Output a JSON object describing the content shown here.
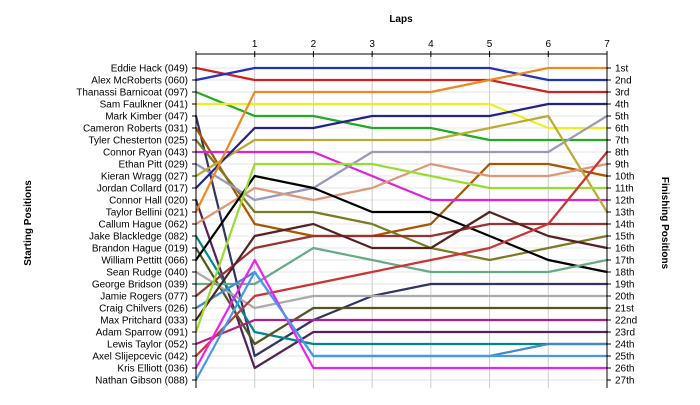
{
  "chart_data": {
    "type": "line",
    "title": "",
    "xlabel": "Laps",
    "ylabel_left": "Starting Positions",
    "ylabel_right": "Finishing Positions",
    "x": [
      0,
      1,
      2,
      3,
      4,
      5,
      6,
      7
    ],
    "x_tick_labels": [
      "1",
      "2",
      "3",
      "4",
      "5",
      "6",
      "7"
    ],
    "y_reversed": true,
    "ylim": [
      1,
      27
    ],
    "grid": true,
    "start_labels": [
      "Eddie Hack (049)",
      "Alex McRoberts (060)",
      "Thanassi Barnicoat (097)",
      "Sam Faulkner (041)",
      "Mark Kimber (047)",
      "Cameron Roberts (031)",
      "Tyler Chesterton (025)",
      "Connor Ryan (043)",
      "Ethan Pitt (029)",
      "Kieran Wragg (027)",
      "Jordan Collard (017)",
      "Connor Hall (020)",
      "Taylor Bellini (021)",
      "Callum Hague (062)",
      "Jake Blackledge (082)",
      "Brandon Hague (019)",
      "William Pettitt (066)",
      "Sean Rudge (040)",
      "George Bridson (039)",
      "Jamie Rogers (077)",
      "Craig Chilvers (026)",
      "Max Pritchard (033)",
      "Adam Sparrow (091)",
      "Lewis Taylor (052)",
      "Axel Slijepcevic (042)",
      "Kris Elliott (036)",
      "Nathan Gibson (088)"
    ],
    "finish_labels": [
      "1st",
      "2nd",
      "3rd",
      "4th",
      "5th",
      "6th",
      "7th",
      "8th",
      "9th",
      "10th",
      "11th",
      "12th",
      "13th",
      "14th",
      "15th",
      "16th",
      "17th",
      "18th",
      "19th",
      "20th",
      "21st",
      "22nd",
      "23rd",
      "24th",
      "25th",
      "26th",
      "27th"
    ],
    "series": [
      {
        "name": "Eddie Hack (049)",
        "color": "#cc2222",
        "values": [
          1,
          2,
          2,
          2,
          2,
          2,
          3,
          3
        ]
      },
      {
        "name": "Alex McRoberts (060)",
        "color": "#2233bb",
        "values": [
          2,
          1,
          1,
          1,
          1,
          1,
          2,
          2
        ]
      },
      {
        "name": "Thanassi Barnicoat (097)",
        "color": "#22aa22",
        "values": [
          3,
          5,
          5,
          6,
          6,
          7,
          7,
          7
        ]
      },
      {
        "name": "Sam Faulkner (041)",
        "color": "#eeee22",
        "values": [
          4,
          4,
          4,
          4,
          4,
          4,
          6,
          6
        ]
      },
      {
        "name": "Mark Kimber (047)",
        "color": "#333366",
        "values": [
          5,
          25,
          22,
          20,
          19,
          19,
          19,
          19
        ]
      },
      {
        "name": "Cameron Roberts (031)",
        "color": "#aa5500",
        "values": [
          6,
          14,
          15,
          15,
          14,
          9,
          9,
          10
        ]
      },
      {
        "name": "Tyler Chesterton (025)",
        "color": "#7b7b22",
        "values": [
          7,
          13,
          13,
          14,
          16,
          17,
          16,
          15
        ]
      },
      {
        "name": "Connor Ryan (043)",
        "color": "#dd22dd",
        "values": [
          8,
          8,
          8,
          10,
          12,
          12,
          12,
          12
        ]
      },
      {
        "name": "Ethan Pitt (029)",
        "color": "#9999bb",
        "values": [
          9,
          12,
          11,
          8,
          8,
          8,
          8,
          5
        ]
      },
      {
        "name": "Kieran Wragg (027)",
        "color": "#bbaa33",
        "values": [
          10,
          7,
          7,
          7,
          7,
          6,
          5,
          13
        ]
      },
      {
        "name": "Jordan Collard (017)",
        "color": "#222288",
        "values": [
          11,
          6,
          6,
          5,
          5,
          5,
          4,
          4
        ]
      },
      {
        "name": "Connor Hall (020)",
        "color": "#552255",
        "values": [
          12,
          26,
          23,
          23,
          23,
          23,
          23,
          23
        ]
      },
      {
        "name": "Taylor Bellini (021)",
        "color": "#ee8822",
        "values": [
          13,
          3,
          3,
          3,
          3,
          2,
          1,
          1
        ]
      },
      {
        "name": "Callum Hague (062)",
        "color": "#dd9977",
        "values": [
          14,
          11,
          12,
          11,
          9,
          10,
          10,
          9
        ]
      },
      {
        "name": "Jake Blackledge (082)",
        "color": "#008888",
        "values": [
          15,
          23,
          24,
          24,
          24,
          24,
          24,
          24
        ]
      },
      {
        "name": "Brandon Hague (019)",
        "color": "#555522",
        "values": [
          16,
          24,
          21,
          21,
          21,
          21,
          21,
          21
        ]
      },
      {
        "name": "William Pettitt (066)",
        "color": "#000000",
        "values": [
          17,
          10,
          11,
          13,
          13,
          15,
          17,
          18
        ]
      },
      {
        "name": "Sean Rudge (040)",
        "color": "#aaaaaa",
        "values": [
          18,
          21,
          20,
          20,
          20,
          20,
          20,
          20
        ]
      },
      {
        "name": "George Bridson (039)",
        "color": "#66aa88",
        "values": [
          19,
          19,
          16,
          17,
          18,
          18,
          18,
          17
        ]
      },
      {
        "name": "Jamie Rogers (077)",
        "color": "#993333",
        "values": [
          20,
          16,
          15,
          15,
          15,
          14,
          14,
          14
        ]
      },
      {
        "name": "Craig Chilvers (026)",
        "color": "#4488cc",
        "values": [
          21,
          18,
          25,
          25,
          25,
          25,
          24,
          24
        ]
      },
      {
        "name": "Max Pritchard (033)",
        "color": "#552222",
        "values": [
          22,
          15,
          14,
          16,
          16,
          13,
          15,
          16
        ]
      },
      {
        "name": "Adam Sparrow (091)",
        "color": "#99dd33",
        "values": [
          23,
          9,
          9,
          9,
          10,
          11,
          11,
          11
        ]
      },
      {
        "name": "Lewis Taylor (052)",
        "color": "#aa2288",
        "values": [
          24,
          22,
          22,
          22,
          22,
          22,
          22,
          22
        ]
      },
      {
        "name": "Axel Slijepcevic (042)",
        "color": "#cc3333",
        "values": [
          25,
          20,
          19,
          18,
          17,
          16,
          14,
          8
        ]
      },
      {
        "name": "Kris Elliott (036)",
        "color": "#ee22ee",
        "values": [
          26,
          17,
          26,
          26,
          26,
          26,
          26,
          26
        ]
      },
      {
        "name": "Nathan Gibson (088)",
        "color": "#4499ee",
        "values": [
          27,
          18,
          25,
          25,
          25,
          25,
          25,
          25
        ]
      }
    ]
  }
}
